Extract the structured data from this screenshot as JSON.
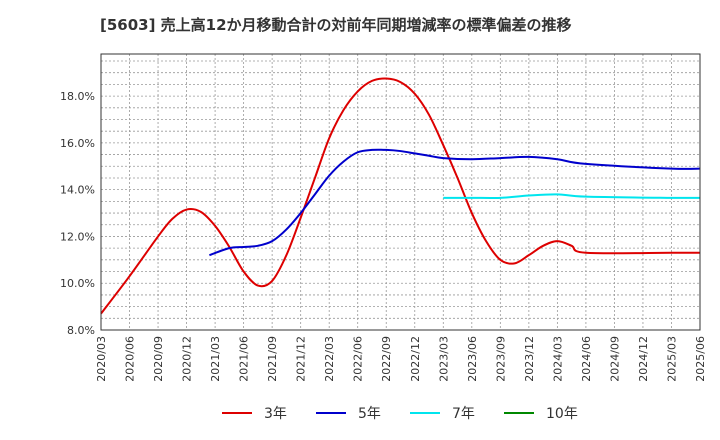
{
  "title": "[5603]  売上高12か月移動合計の対前年同期増減率の標準偏差の推移",
  "chart_data": {
    "type": "line",
    "x_ticks": [
      "2020/03",
      "2020/06",
      "2020/09",
      "2020/12",
      "2021/03",
      "2021/06",
      "2021/09",
      "2021/12",
      "2022/03",
      "2022/06",
      "2022/09",
      "2022/12",
      "2023/03",
      "2023/06",
      "2023/09",
      "2023/12",
      "2024/03",
      "2024/06",
      "2024/09",
      "2024/12",
      "2025/03",
      "2025/06"
    ],
    "y_ticks": [
      "8.0%",
      "10.0%",
      "12.0%",
      "14.0%",
      "16.0%",
      "18.0%"
    ],
    "ylim": [
      8.0,
      19.8
    ],
    "x_range": [
      0,
      21
    ],
    "grid": true,
    "legend_position": "bottom",
    "series": [
      {
        "name": "3年",
        "color": "#dd0000",
        "points": [
          [
            0,
            8.7
          ],
          [
            1,
            10.3
          ],
          [
            2,
            12.0
          ],
          [
            2.5,
            12.75
          ],
          [
            3,
            13.15
          ],
          [
            3.5,
            13.05
          ],
          [
            4,
            12.45
          ],
          [
            4.5,
            11.55
          ],
          [
            5,
            10.5
          ],
          [
            5.5,
            9.9
          ],
          [
            6,
            10.1
          ],
          [
            6.5,
            11.2
          ],
          [
            7,
            12.8
          ],
          [
            7.5,
            14.5
          ],
          [
            8,
            16.2
          ],
          [
            8.5,
            17.4
          ],
          [
            9,
            18.2
          ],
          [
            9.5,
            18.65
          ],
          [
            10,
            18.75
          ],
          [
            10.5,
            18.6
          ],
          [
            11,
            18.1
          ],
          [
            11.5,
            17.2
          ],
          [
            12,
            15.9
          ],
          [
            12.5,
            14.5
          ],
          [
            13,
            13.0
          ],
          [
            13.5,
            11.8
          ],
          [
            14,
            11.0
          ],
          [
            14.5,
            10.85
          ],
          [
            15,
            11.2
          ],
          [
            15.5,
            11.6
          ],
          [
            16,
            11.8
          ],
          [
            16.5,
            11.6
          ],
          [
            17,
            11.3
          ],
          [
            20,
            11.3
          ],
          [
            21,
            11.3
          ]
        ]
      },
      {
        "name": "5年",
        "color": "#0000cc",
        "points": [
          [
            3.8,
            11.2
          ],
          [
            4.5,
            11.5
          ],
          [
            5,
            11.55
          ],
          [
            5.5,
            11.6
          ],
          [
            6,
            11.8
          ],
          [
            6.5,
            12.3
          ],
          [
            7,
            13.0
          ],
          [
            7.5,
            13.8
          ],
          [
            8,
            14.6
          ],
          [
            8.5,
            15.2
          ],
          [
            9,
            15.6
          ],
          [
            9.5,
            15.7
          ],
          [
            10,
            15.7
          ],
          [
            10.5,
            15.65
          ],
          [
            11,
            15.55
          ],
          [
            11.5,
            15.45
          ],
          [
            12,
            15.35
          ],
          [
            13,
            15.3
          ],
          [
            14,
            15.35
          ],
          [
            15,
            15.4
          ],
          [
            16,
            15.3
          ],
          [
            17,
            15.1
          ],
          [
            20,
            14.9
          ],
          [
            21,
            14.9
          ]
        ]
      },
      {
        "name": "7年",
        "color": "#00e5ee",
        "points": [
          [
            12,
            13.65
          ],
          [
            13,
            13.65
          ],
          [
            14,
            13.65
          ],
          [
            15,
            13.75
          ],
          [
            16,
            13.8
          ],
          [
            17,
            13.7
          ],
          [
            20,
            13.65
          ],
          [
            21,
            13.65
          ]
        ]
      },
      {
        "name": "10年",
        "color": "#008800",
        "points": []
      }
    ]
  }
}
